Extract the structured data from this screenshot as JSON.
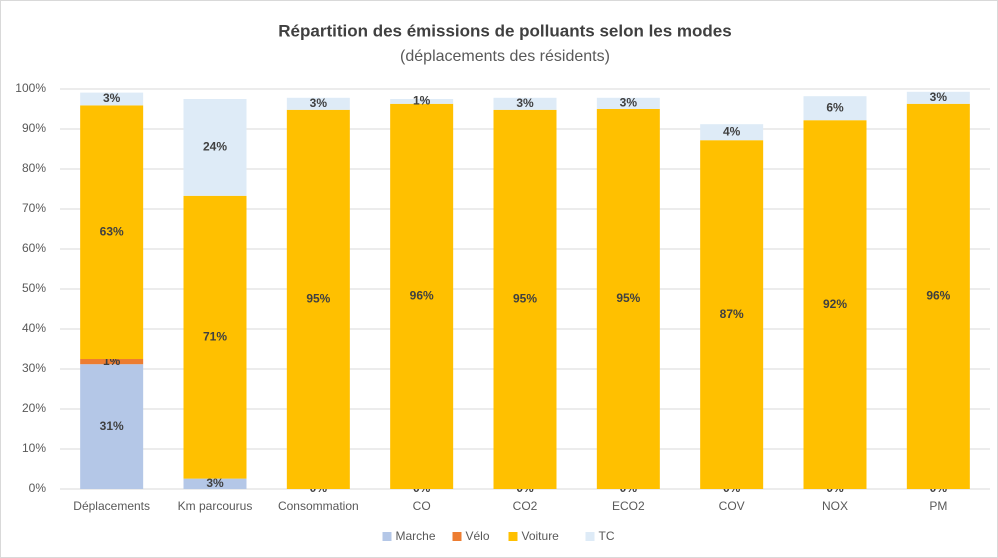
{
  "chart_data": {
    "type": "stacked_bar",
    "title": "Répartition des émissions de polluants selon les modes",
    "subtitle": "(déplacements des résidents)",
    "categories": [
      "Déplacements",
      "Km parcourus",
      "Consommation",
      "CO",
      "CO2",
      "ECO2",
      "COV",
      "NOX",
      "PM"
    ],
    "series": [
      {
        "name": "Marche",
        "color": "#b4c7e7",
        "values": [
          31.2,
          2.6,
          0,
          0,
          0,
          0,
          0,
          0,
          0
        ],
        "value_labels": [
          "31%",
          "3%",
          "0%",
          "0%",
          "0%",
          "0%",
          "0%",
          "0%",
          "0%"
        ]
      },
      {
        "name": "Vélo",
        "color": "#ed7d31",
        "values": [
          1.3,
          0,
          0,
          0,
          0,
          0,
          0,
          0,
          0
        ],
        "value_labels": [
          "1%",
          "0%",
          null,
          null,
          null,
          null,
          null,
          null,
          null
        ]
      },
      {
        "name": "Voiture",
        "color": "#ffc000",
        "values": [
          63.4,
          70.7,
          94.8,
          96.3,
          94.8,
          95,
          87.2,
          92.2,
          96.3
        ],
        "value_labels": [
          "63%",
          "71%",
          "95%",
          "96%",
          "95%",
          "95%",
          "87%",
          "92%",
          "96%"
        ]
      },
      {
        "name": "TC",
        "color": "#deebf7",
        "values": [
          3.2,
          24.2,
          3,
          1.2,
          3,
          2.8,
          4,
          6,
          3
        ],
        "value_labels": [
          "3%",
          "24%",
          "3%",
          "1%",
          "3%",
          "3%",
          "4%",
          "6%",
          "3%"
        ]
      }
    ],
    "ylim": [
      0,
      100
    ],
    "yticks": [
      {
        "value": 0,
        "label": "0%"
      },
      {
        "value": 10,
        "label": "10%"
      },
      {
        "value": 20,
        "label": "20%"
      },
      {
        "value": 30,
        "label": "30%"
      },
      {
        "value": 40,
        "label": "40%"
      },
      {
        "value": 50,
        "label": "50%"
      },
      {
        "value": 60,
        "label": "60%"
      },
      {
        "value": 70,
        "label": "70%"
      },
      {
        "value": 80,
        "label": "80%"
      },
      {
        "value": 90,
        "label": "90%"
      },
      {
        "value": 100,
        "label": "100%"
      }
    ],
    "grid": true,
    "legend": "bottom"
  }
}
